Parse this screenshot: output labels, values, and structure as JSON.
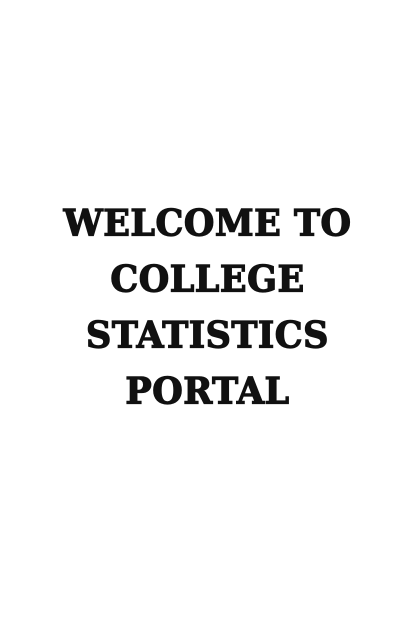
{
  "welcome": {
    "lines": [
      "WELCOME TO",
      "COLLEGE",
      "STATISTICS",
      "PORTAL"
    ]
  }
}
